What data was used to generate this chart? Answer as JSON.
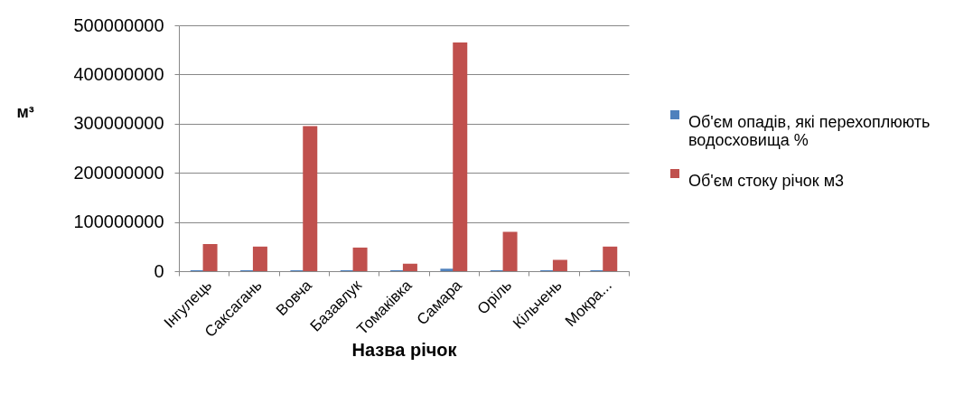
{
  "chart_data": {
    "type": "bar",
    "xlabel": "Назва річок",
    "ylabel": "м³",
    "categories": [
      "Інгулець",
      "Саксагань",
      "Вовча",
      "Базавлук",
      "Томаківка",
      "Самара",
      "Оріль",
      "Кільчень",
      "Мокра..."
    ],
    "series": [
      {
        "name": "Об'єм опадів, які перехоплюють водосховища %",
        "color": "#4f81bd",
        "values": [
          2000000,
          2000000,
          2000000,
          2000000,
          2000000,
          5000000,
          2000000,
          2000000,
          2000000
        ]
      },
      {
        "name": "Об'єм стоку річок м3",
        "color": "#c0504d",
        "values": [
          55000000,
          50000000,
          295000000,
          48000000,
          15000000,
          465000000,
          80000000,
          23000000,
          50000000
        ]
      }
    ],
    "ylim": [
      0,
      500000000
    ],
    "yticks": [
      0,
      100000000,
      200000000,
      300000000,
      400000000,
      500000000
    ],
    "grid": "y",
    "legend": "right"
  }
}
